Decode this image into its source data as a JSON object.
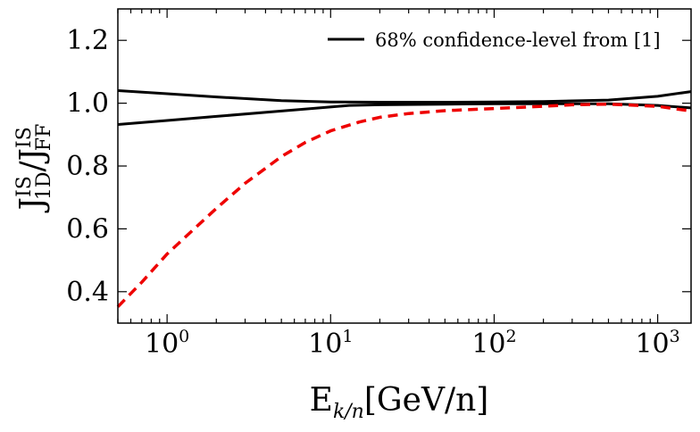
{
  "chart_data": {
    "type": "line",
    "title": "",
    "xlabel": {
      "main": "E",
      "sub": "k/n",
      "rest": "[GeV/n]"
    },
    "ylabel": {
      "main": "J",
      "sup1": "IS",
      "sub1": "1D",
      "sep": "/J",
      "sup2": "IS",
      "sub2": "FF"
    },
    "xscale": "log",
    "xlim": [
      0.5,
      1600
    ],
    "ylim": [
      0.3,
      1.3
    ],
    "x_ticks": [
      {
        "value": 1,
        "base": "10",
        "exp": "0"
      },
      {
        "value": 10,
        "base": "10",
        "exp": "1"
      },
      {
        "value": 100,
        "base": "10",
        "exp": "2"
      },
      {
        "value": 1000,
        "base": "10",
        "exp": "3"
      }
    ],
    "y_ticks": [
      {
        "value": 0.4,
        "label": "0.4"
      },
      {
        "value": 0.6,
        "label": "0.6"
      },
      {
        "value": 0.8,
        "label": "0.8"
      },
      {
        "value": 1.0,
        "label": "1.0"
      },
      {
        "value": 1.2,
        "label": "1.2"
      }
    ],
    "grid": false,
    "legend": {
      "position": "top-right",
      "entries": [
        {
          "label": "68% confidence-level from [1]",
          "color": "#000000",
          "style": "solid"
        }
      ]
    },
    "series": [
      {
        "name": "68% confidence-level from [1]",
        "color": "#000000",
        "style": "solid",
        "x": [
          0.5,
          1,
          2,
          5,
          10,
          20,
          50,
          100,
          200,
          500,
          1000,
          1600
        ],
        "y": [
          1.04,
          1.03,
          1.02,
          1.008,
          1.004,
          1.003,
          1.003,
          1.004,
          1.005,
          1.01,
          1.022,
          1.037
        ]
      },
      {
        "name": "",
        "color": "#000000",
        "style": "solid",
        "x": [
          0.5,
          1,
          2,
          5,
          13,
          20,
          50,
          100,
          200,
          500,
          1000,
          1600
        ],
        "y": [
          0.932,
          0.945,
          0.958,
          0.975,
          0.993,
          0.995,
          0.997,
          0.998,
          0.998,
          0.998,
          0.993,
          0.985
        ]
      },
      {
        "name": "",
        "color": "#ee0000",
        "style": "dashed",
        "x": [
          0.5,
          0.7,
          1,
          1.5,
          2,
          3,
          5,
          7,
          10,
          15,
          20,
          30,
          50,
          100,
          200,
          300,
          500,
          1000,
          1600
        ],
        "y": [
          0.352,
          0.43,
          0.52,
          0.605,
          0.665,
          0.745,
          0.83,
          0.875,
          0.912,
          0.94,
          0.955,
          0.967,
          0.976,
          0.983,
          0.99,
          0.995,
          0.997,
          0.99,
          0.975
        ]
      }
    ]
  }
}
